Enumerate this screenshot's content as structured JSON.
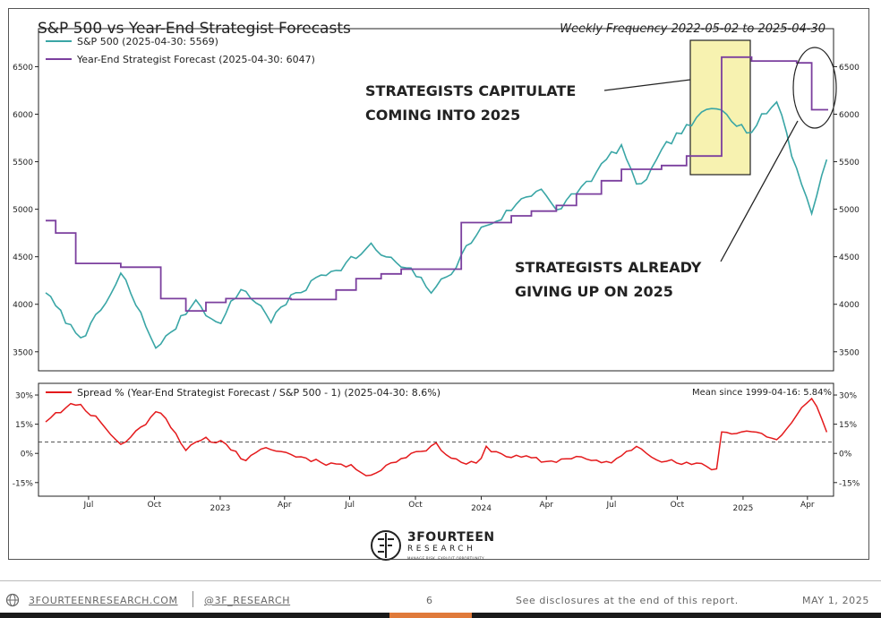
{
  "header": {
    "title": "S&P 500 vs Year-End Strategist Forecasts",
    "subtitle": "Weekly Frequency 2022-05-02 to 2025-04-30"
  },
  "annotations": {
    "capitulate_line1": "STRATEGISTS CAPITULATE",
    "capitulate_line2": "COMING INTO 2025",
    "giving_up_line1": "STRATEGISTS ALREADY",
    "giving_up_line2": "GIVING UP ON 2025"
  },
  "logo": {
    "name": "3FOURTEEN",
    "sub": "RESEARCH",
    "tagline": "MANAGE RISK. EXPLOIT OPPORTUNITY."
  },
  "footer": {
    "site": "3FOURTEENRESEARCH.COM",
    "handle": "@3F_RESEARCH",
    "page": "6",
    "disclosure": "See disclosures at the end of this report.",
    "date": "MAY 1, 2025"
  },
  "colors": {
    "sp500": "#3aa6a6",
    "forecast": "#7b3f9e",
    "spread": "#e41a1c",
    "highlight": "#f7f2b0"
  },
  "chart_data": [
    {
      "type": "line",
      "legend_placement": "top-left",
      "ylim": [
        3300,
        6900
      ],
      "yticks": [
        3500,
        4000,
        4500,
        5000,
        5500,
        6000,
        6500
      ],
      "series": [
        {
          "name": "S&P 500 (2025-04-30: 5569)",
          "points": [
            [
              "2022-05-02",
              4150
            ],
            [
              "2022-05-20",
              3900
            ],
            [
              "2022-06-16",
              3670
            ],
            [
              "2022-07-15",
              3860
            ],
            [
              "2022-08-16",
              4300
            ],
            [
              "2022-09-30",
              3585
            ],
            [
              "2022-10-12",
              3577
            ],
            [
              "2022-11-30",
              4080
            ],
            [
              "2022-12-28",
              3780
            ],
            [
              "2023-02-02",
              4180
            ],
            [
              "2023-03-13",
              3850
            ],
            [
              "2023-04-28",
              4170
            ],
            [
              "2023-06-15",
              4420
            ],
            [
              "2023-07-31",
              4590
            ],
            [
              "2023-09-29",
              4290
            ],
            [
              "2023-10-27",
              4120
            ],
            [
              "2023-12-29",
              4770
            ],
            [
              "2024-03-28",
              5250
            ],
            [
              "2024-04-19",
              4970
            ],
            [
              "2024-07-16",
              5670
            ],
            [
              "2024-08-05",
              5190
            ],
            [
              "2024-09-30",
              5760
            ],
            [
              "2024-11-11",
              6000
            ],
            [
              "2024-12-06",
              6090
            ],
            [
              "2025-01-10",
              5830
            ],
            [
              "2025-02-19",
              6144
            ],
            [
              "2025-03-13",
              5520
            ],
            [
              "2025-04-08",
              4982
            ],
            [
              "2025-04-30",
              5569
            ]
          ]
        },
        {
          "name": "Year-End Strategist Forecast (2025-04-30: 6047)",
          "points": [
            [
              "2022-05-02",
              4880
            ],
            [
              "2022-05-16",
              4750
            ],
            [
              "2022-06-13",
              4430
            ],
            [
              "2022-08-15",
              4390
            ],
            [
              "2022-10-10",
              4060
            ],
            [
              "2022-11-14",
              3930
            ],
            [
              "2022-12-12",
              4020
            ],
            [
              "2023-01-09",
              4060
            ],
            [
              "2023-04-10",
              4050
            ],
            [
              "2023-06-12",
              4150
            ],
            [
              "2023-07-10",
              4270
            ],
            [
              "2023-08-14",
              4320
            ],
            [
              "2023-09-11",
              4370
            ],
            [
              "2023-12-04",
              4860
            ],
            [
              "2024-02-12",
              4930
            ],
            [
              "2024-03-11",
              4980
            ],
            [
              "2024-04-15",
              5040
            ],
            [
              "2024-05-13",
              5160
            ],
            [
              "2024-06-17",
              5300
            ],
            [
              "2024-07-15",
              5420
            ],
            [
              "2024-09-09",
              5460
            ],
            [
              "2024-10-14",
              5560
            ],
            [
              "2024-12-02",
              6600
            ],
            [
              "2025-01-13",
              6560
            ],
            [
              "2025-03-17",
              6540
            ],
            [
              "2025-04-07",
              6047
            ],
            [
              "2025-04-30",
              6047
            ]
          ]
        }
      ],
      "right_axis": true
    },
    {
      "type": "line",
      "legend_placement": "top-left",
      "ylim": [
        -22,
        36
      ],
      "yticks": [
        -15,
        0,
        15,
        30
      ],
      "ytick_labels": [
        "-15%",
        "0%",
        "15%",
        "30%"
      ],
      "reference_line": {
        "value": 5.84,
        "style": "dashed"
      },
      "annotation": "Mean since 1999-04-16: 5.84%",
      "series": [
        {
          "name": "Spread % (Year-End Strategist Forecast / S&P 500 - 1) (2025-04-30: 8.6%)",
          "points": [
            [
              "2022-05-02",
              17
            ],
            [
              "2022-05-16",
              22
            ],
            [
              "2022-06-16",
              26
            ],
            [
              "2022-07-15",
              18
            ],
            [
              "2022-08-16",
              4
            ],
            [
              "2022-09-30",
              20
            ],
            [
              "2022-10-12",
              22
            ],
            [
              "2022-11-14",
              3
            ],
            [
              "2022-12-12",
              6
            ],
            [
              "2023-01-09",
              6
            ],
            [
              "2023-02-02",
              -3
            ],
            [
              "2023-03-13",
              2
            ],
            [
              "2023-04-28",
              -2
            ],
            [
              "2023-06-15",
              -5
            ],
            [
              "2023-07-31",
              -10
            ],
            [
              "2023-09-29",
              1
            ],
            [
              "2023-10-27",
              5
            ],
            [
              "2023-11-30",
              -4
            ],
            [
              "2023-12-29",
              -6
            ],
            [
              "2024-01-08",
              2
            ],
            [
              "2024-03-28",
              -5
            ],
            [
              "2024-05-13",
              -1
            ],
            [
              "2024-06-17",
              -6
            ],
            [
              "2024-07-16",
              -2
            ],
            [
              "2024-08-05",
              4
            ],
            [
              "2024-09-30",
              -5
            ],
            [
              "2024-11-25",
              -8
            ],
            [
              "2024-12-02",
              11
            ],
            [
              "2025-01-10",
              12
            ],
            [
              "2025-02-19",
              7
            ],
            [
              "2025-03-13",
              16
            ],
            [
              "2025-04-08",
              30
            ],
            [
              "2025-04-30",
              8.6
            ]
          ]
        }
      ],
      "right_axis": true
    }
  ],
  "x_axis": {
    "range": [
      "2022-05-02",
      "2025-04-30"
    ],
    "ticks": [
      {
        "date": "2022-07-01",
        "label": "Jul"
      },
      {
        "date": "2022-10-01",
        "label": "Oct"
      },
      {
        "date": "2023-01-01",
        "label": "2023"
      },
      {
        "date": "2023-04-01",
        "label": "Apr"
      },
      {
        "date": "2023-07-01",
        "label": "Jul"
      },
      {
        "date": "2023-10-01",
        "label": "Oct"
      },
      {
        "date": "2024-01-01",
        "label": "2024"
      },
      {
        "date": "2024-04-01",
        "label": "Apr"
      },
      {
        "date": "2024-07-01",
        "label": "Jul"
      },
      {
        "date": "2024-10-01",
        "label": "Oct"
      },
      {
        "date": "2025-01-01",
        "label": "2025"
      },
      {
        "date": "2025-04-01",
        "label": "Apr"
      }
    ]
  }
}
